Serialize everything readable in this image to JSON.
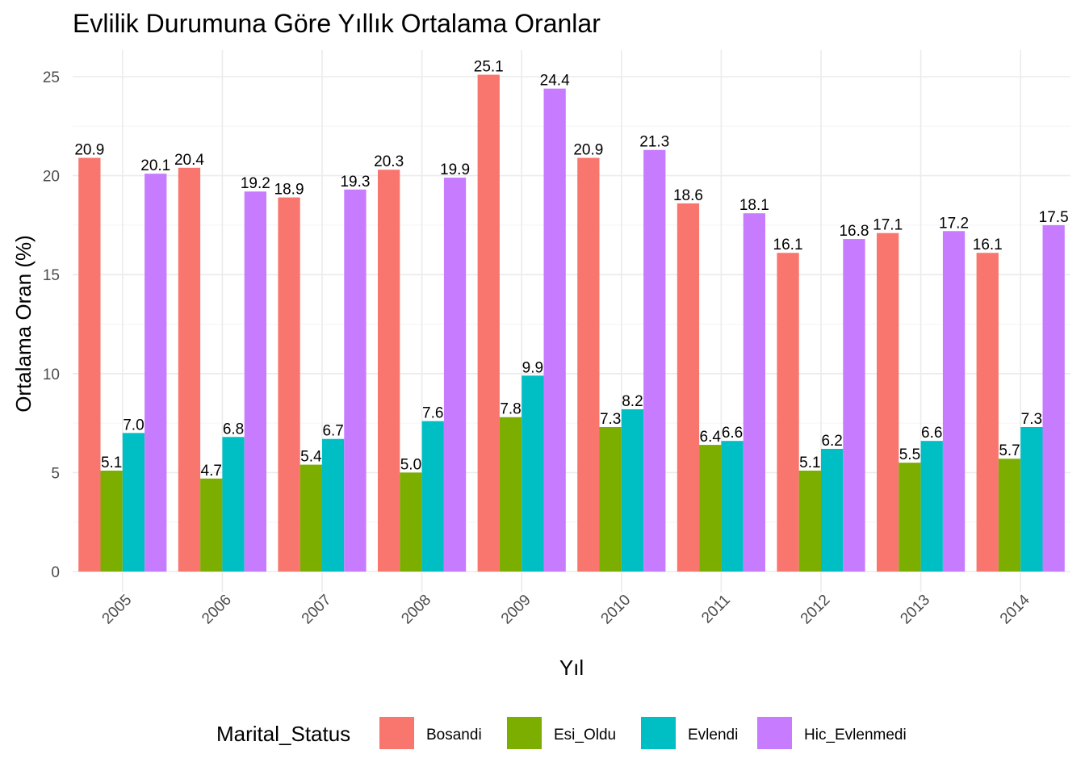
{
  "chart_data": {
    "type": "bar",
    "title": "Evlilik Durumuna Göre Yıllık Ortalama Oranlar",
    "xlabel": "Yıl",
    "ylabel": "Ortalama Oran (%)",
    "categories": [
      "2005",
      "2006",
      "2007",
      "2008",
      "2009",
      "2010",
      "2011",
      "2012",
      "2013",
      "2014"
    ],
    "ylim": [
      0,
      26
    ],
    "yticks": [
      0,
      5,
      10,
      15,
      20,
      25
    ],
    "grid": true,
    "legend_position": "bottom",
    "legend_title": "Marital_Status",
    "series": [
      {
        "name": "Bosandi",
        "color": "#F8766D",
        "values": [
          20.9,
          20.4,
          18.9,
          20.3,
          25.1,
          20.9,
          18.6,
          16.1,
          17.1,
          16.1
        ]
      },
      {
        "name": "Esi_Oldu",
        "color": "#7CAE00",
        "values": [
          5.1,
          4.7,
          5.4,
          5.0,
          7.8,
          7.3,
          6.4,
          5.1,
          5.5,
          5.7
        ]
      },
      {
        "name": "Evlendi",
        "color": "#00BFC4",
        "values": [
          7.0,
          6.8,
          6.7,
          7.6,
          9.9,
          8.2,
          6.6,
          6.2,
          6.6,
          7.3
        ]
      },
      {
        "name": "Hic_Evlenmedi",
        "color": "#C77CFF",
        "values": [
          20.1,
          19.2,
          19.3,
          19.9,
          24.4,
          21.3,
          18.1,
          16.8,
          17.2,
          17.5
        ]
      }
    ]
  }
}
